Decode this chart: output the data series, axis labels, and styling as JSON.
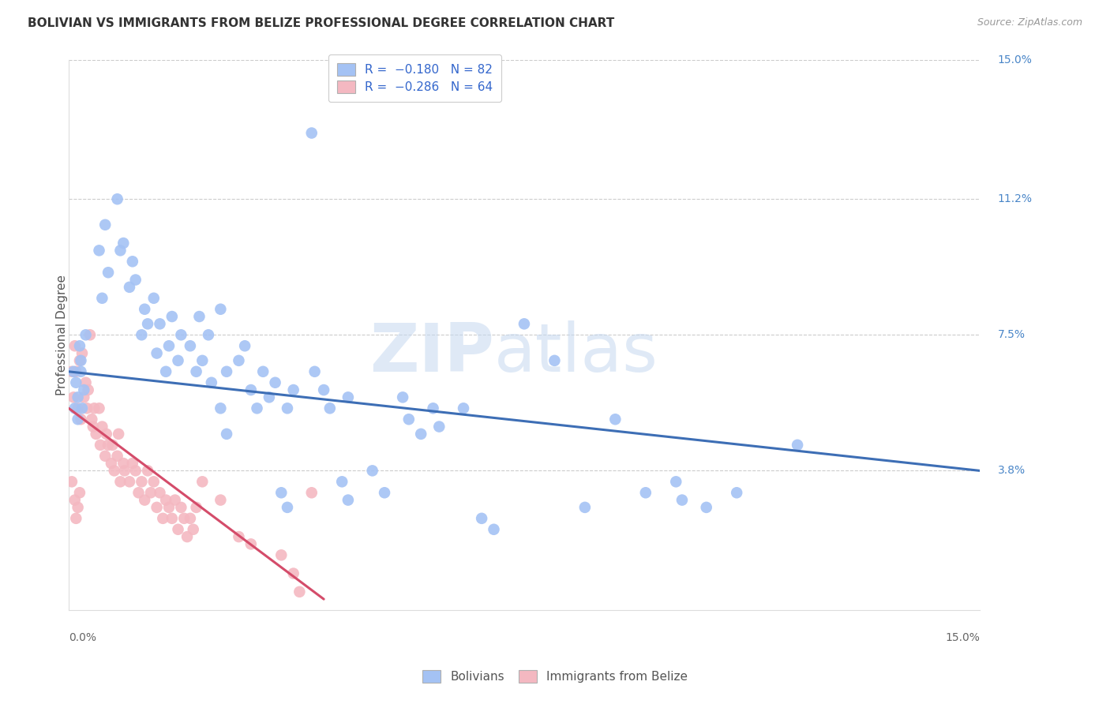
{
  "title": "BOLIVIAN VS IMMIGRANTS FROM BELIZE PROFESSIONAL DEGREE CORRELATION CHART",
  "source": "Source: ZipAtlas.com",
  "ylabel": "Professional Degree",
  "xmin": 0.0,
  "xmax": 15.0,
  "ymin": 0.0,
  "ymax": 15.0,
  "watermark_zip": "ZIP",
  "watermark_atlas": "atlas",
  "blue_color": "#a4c2f4",
  "pink_color": "#f4b8c1",
  "blue_line_color": "#3d6eb5",
  "pink_line_color": "#d44c6a",
  "blue_scatter": [
    [
      0.08,
      6.5
    ],
    [
      0.12,
      6.2
    ],
    [
      0.15,
      5.8
    ],
    [
      0.18,
      7.2
    ],
    [
      0.2,
      6.8
    ],
    [
      0.22,
      5.5
    ],
    [
      0.25,
      6.0
    ],
    [
      0.28,
      7.5
    ],
    [
      0.5,
      9.8
    ],
    [
      0.55,
      8.5
    ],
    [
      0.6,
      10.5
    ],
    [
      0.65,
      9.2
    ],
    [
      0.8,
      11.2
    ],
    [
      0.85,
      9.8
    ],
    [
      0.9,
      10.0
    ],
    [
      1.0,
      8.8
    ],
    [
      1.05,
      9.5
    ],
    [
      1.1,
      9.0
    ],
    [
      1.2,
      7.5
    ],
    [
      1.25,
      8.2
    ],
    [
      1.3,
      7.8
    ],
    [
      1.4,
      8.5
    ],
    [
      1.45,
      7.0
    ],
    [
      1.5,
      7.8
    ],
    [
      1.6,
      6.5
    ],
    [
      1.65,
      7.2
    ],
    [
      1.7,
      8.0
    ],
    [
      1.8,
      6.8
    ],
    [
      1.85,
      7.5
    ],
    [
      2.0,
      7.2
    ],
    [
      2.1,
      6.5
    ],
    [
      2.15,
      8.0
    ],
    [
      2.2,
      6.8
    ],
    [
      2.3,
      7.5
    ],
    [
      2.35,
      6.2
    ],
    [
      2.5,
      8.2
    ],
    [
      2.6,
      6.5
    ],
    [
      2.8,
      6.8
    ],
    [
      2.9,
      7.2
    ],
    [
      3.0,
      6.0
    ],
    [
      3.1,
      5.5
    ],
    [
      3.2,
      6.5
    ],
    [
      3.3,
      5.8
    ],
    [
      3.4,
      6.2
    ],
    [
      3.6,
      5.5
    ],
    [
      3.7,
      6.0
    ],
    [
      4.0,
      13.0
    ],
    [
      4.05,
      6.5
    ],
    [
      4.2,
      6.0
    ],
    [
      4.3,
      5.5
    ],
    [
      4.6,
      5.8
    ],
    [
      5.5,
      5.8
    ],
    [
      5.6,
      5.2
    ],
    [
      5.8,
      4.8
    ],
    [
      6.0,
      5.5
    ],
    [
      6.1,
      5.0
    ],
    [
      6.5,
      5.5
    ],
    [
      7.5,
      7.8
    ],
    [
      8.0,
      6.8
    ],
    [
      9.0,
      5.2
    ],
    [
      9.5,
      3.2
    ],
    [
      10.0,
      3.5
    ],
    [
      10.1,
      3.0
    ],
    [
      10.5,
      2.8
    ],
    [
      11.0,
      3.2
    ],
    [
      12.0,
      4.5
    ],
    [
      0.1,
      5.5
    ],
    [
      0.15,
      5.2
    ],
    [
      0.2,
      6.5
    ],
    [
      2.5,
      5.5
    ],
    [
      2.6,
      4.8
    ],
    [
      3.5,
      3.2
    ],
    [
      3.6,
      2.8
    ],
    [
      4.5,
      3.5
    ],
    [
      4.6,
      3.0
    ],
    [
      5.0,
      3.8
    ],
    [
      5.2,
      3.2
    ],
    [
      6.8,
      2.5
    ],
    [
      7.0,
      2.2
    ],
    [
      8.5,
      2.8
    ]
  ],
  "pink_scatter": [
    [
      0.05,
      6.5
    ],
    [
      0.08,
      5.8
    ],
    [
      0.1,
      7.2
    ],
    [
      0.12,
      6.5
    ],
    [
      0.15,
      5.5
    ],
    [
      0.18,
      6.8
    ],
    [
      0.2,
      5.2
    ],
    [
      0.22,
      7.0
    ],
    [
      0.25,
      5.8
    ],
    [
      0.28,
      6.2
    ],
    [
      0.3,
      5.5
    ],
    [
      0.32,
      6.0
    ],
    [
      0.35,
      7.5
    ],
    [
      0.38,
      5.2
    ],
    [
      0.4,
      5.0
    ],
    [
      0.42,
      5.5
    ],
    [
      0.45,
      4.8
    ],
    [
      0.5,
      5.5
    ],
    [
      0.52,
      4.5
    ],
    [
      0.55,
      5.0
    ],
    [
      0.6,
      4.2
    ],
    [
      0.62,
      4.8
    ],
    [
      0.65,
      4.5
    ],
    [
      0.7,
      4.0
    ],
    [
      0.72,
      4.5
    ],
    [
      0.75,
      3.8
    ],
    [
      0.8,
      4.2
    ],
    [
      0.82,
      4.8
    ],
    [
      0.85,
      3.5
    ],
    [
      0.9,
      4.0
    ],
    [
      0.92,
      3.8
    ],
    [
      1.0,
      3.5
    ],
    [
      1.05,
      4.0
    ],
    [
      1.1,
      3.8
    ],
    [
      1.15,
      3.2
    ],
    [
      1.2,
      3.5
    ],
    [
      1.25,
      3.0
    ],
    [
      1.3,
      3.8
    ],
    [
      1.35,
      3.2
    ],
    [
      1.4,
      3.5
    ],
    [
      1.45,
      2.8
    ],
    [
      1.5,
      3.2
    ],
    [
      1.55,
      2.5
    ],
    [
      1.6,
      3.0
    ],
    [
      1.65,
      2.8
    ],
    [
      1.7,
      2.5
    ],
    [
      1.75,
      3.0
    ],
    [
      1.8,
      2.2
    ],
    [
      1.85,
      2.8
    ],
    [
      1.9,
      2.5
    ],
    [
      1.95,
      2.0
    ],
    [
      2.0,
      2.5
    ],
    [
      2.05,
      2.2
    ],
    [
      2.1,
      2.8
    ],
    [
      2.2,
      3.5
    ],
    [
      2.5,
      3.0
    ],
    [
      2.8,
      2.0
    ],
    [
      3.0,
      1.8
    ],
    [
      3.5,
      1.5
    ],
    [
      3.7,
      1.0
    ],
    [
      3.8,
      0.5
    ],
    [
      4.0,
      3.2
    ],
    [
      0.05,
      3.5
    ],
    [
      0.1,
      3.0
    ],
    [
      0.12,
      2.5
    ],
    [
      0.15,
      2.8
    ],
    [
      0.18,
      3.2
    ]
  ],
  "blue_line_x": [
    0.0,
    15.0
  ],
  "blue_line_y": [
    6.5,
    3.8
  ],
  "pink_line_x": [
    0.0,
    4.2
  ],
  "pink_line_y": [
    5.5,
    0.3
  ]
}
